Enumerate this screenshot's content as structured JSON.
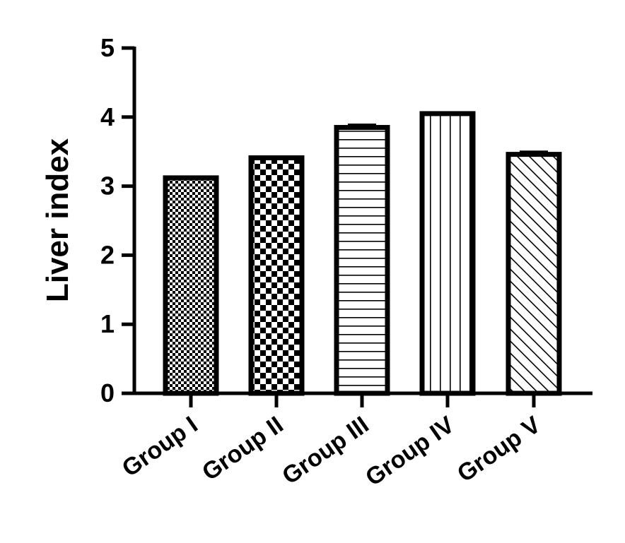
{
  "chart_data": {
    "type": "bar",
    "title": "",
    "xlabel": "",
    "ylabel": "Liver index",
    "ylim": [
      0,
      5
    ],
    "yticks": [
      "0",
      "1",
      "2",
      "3",
      "4",
      "5"
    ],
    "grid": false,
    "legend": "none",
    "categories": [
      "Group I",
      "Group II",
      "Group III",
      "Group IV",
      "Group V"
    ],
    "values": [
      3.12,
      3.41,
      3.85,
      4.05,
      3.46
    ],
    "errors": [
      0.01,
      0.02,
      0.04,
      0.02,
      0.04
    ],
    "patterns": [
      "fine-checker",
      "coarse-checker",
      "horizontal-lines",
      "vertical-lines",
      "diagonal-lines"
    ],
    "colors": {
      "bar_border": "#000000",
      "bar_fill": "#ffffff",
      "pattern": "#000000",
      "axis": "#000000",
      "background": "#ffffff"
    }
  }
}
